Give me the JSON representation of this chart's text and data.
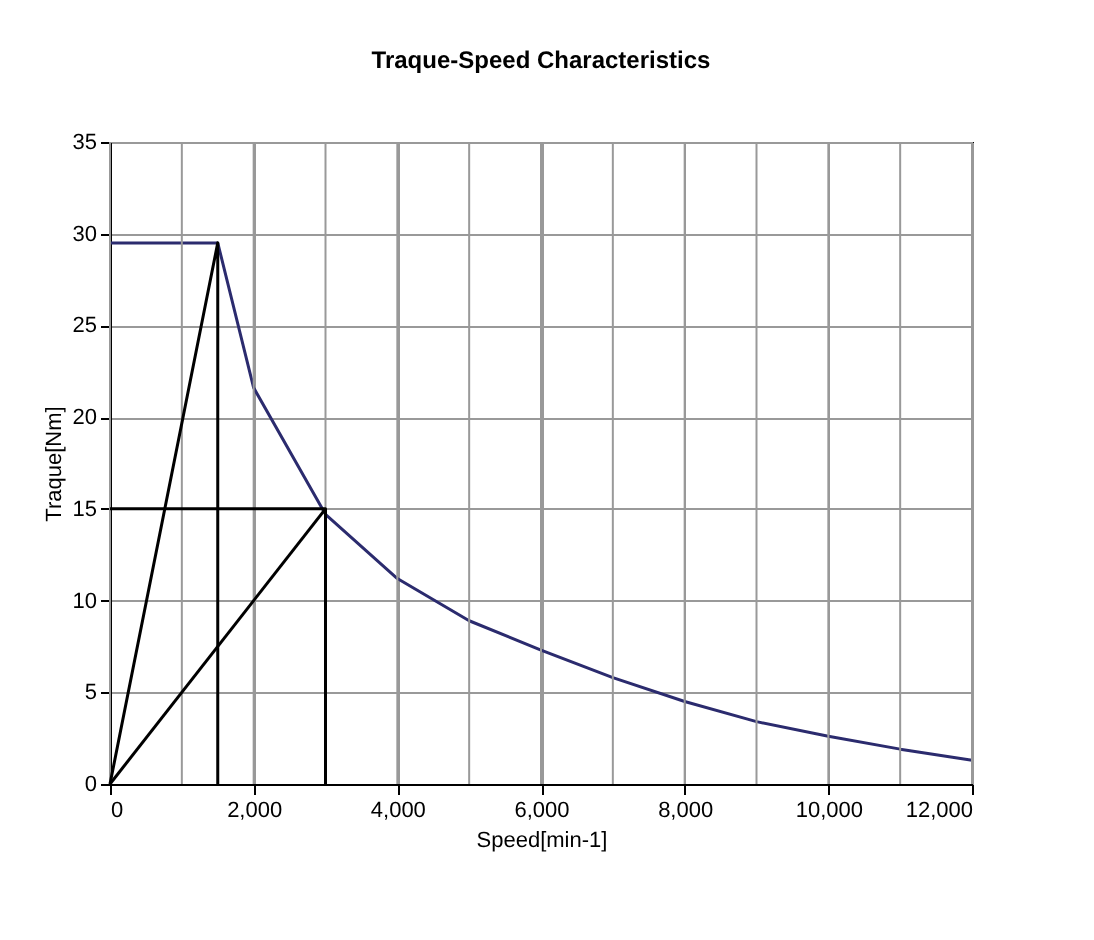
{
  "chart_data": {
    "type": "line",
    "title": "Traque-Speed Characteristics",
    "xlabel": "Speed[min-1]",
    "ylabel": "Traque[Nm]",
    "xlim": [
      0,
      12000
    ],
    "ylim": [
      0,
      35
    ],
    "xticks": [
      0,
      {
        "value": 1000,
        "label": null
      },
      {
        "value": 2000,
        "label": "2,000"
      },
      {
        "value": 3000,
        "label": null
      },
      {
        "value": 4000,
        "label": "4,000"
      },
      {
        "value": 5000,
        "label": null
      },
      {
        "value": 6000,
        "label": "6,000"
      },
      {
        "value": 7000,
        "label": null
      },
      {
        "value": 8000,
        "label": "8,000"
      },
      {
        "value": 9000,
        "label": null
      },
      {
        "value": 10000,
        "label": "10,000"
      },
      {
        "value": 11000,
        "label": null
      },
      {
        "value": 12000,
        "label": "12,000"
      }
    ],
    "yticks": [
      0,
      5,
      10,
      15,
      20,
      25,
      30,
      35
    ],
    "grid": true,
    "marker": "none",
    "line_style": "solid",
    "series": [
      {
        "color": "#2b2b6e",
        "x": [
          0,
          1500,
          2000,
          3000,
          4000,
          5000,
          6000,
          7000,
          8000,
          9000,
          10000,
          11000,
          12000
        ],
        "values": [
          29.5,
          29.5,
          21.6,
          14.7,
          11.2,
          8.9,
          7.3,
          5.8,
          4.5,
          3.4,
          2.6,
          1.9,
          1.3
        ]
      },
      {
        "color": "#000000",
        "x": [
          0,
          1500,
          1500
        ],
        "values": [
          0,
          29.5,
          0
        ]
      },
      {
        "color": "#000000",
        "x": [
          0,
          3000,
          3000
        ],
        "values": [
          15,
          15,
          0
        ]
      },
      {
        "color": "#000000",
        "x": [
          0,
          3000
        ],
        "values": [
          0,
          15
        ]
      }
    ]
  }
}
